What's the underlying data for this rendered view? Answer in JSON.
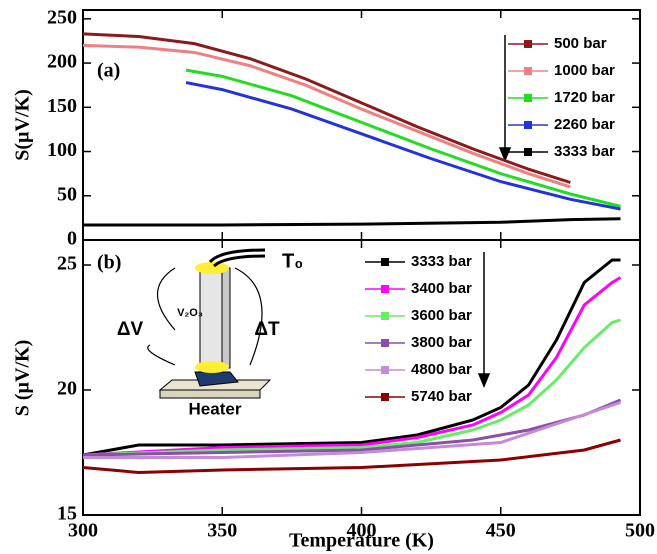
{
  "chart_data": [
    {
      "type": "line",
      "panel_label": "(a)",
      "y_label": "S(µV/K)",
      "xlim": [
        300,
        500
      ],
      "xticks": [
        300,
        350,
        400,
        450,
        500
      ],
      "ylim": [
        0,
        260
      ],
      "yticks": [
        0,
        50,
        100,
        150,
        200,
        250
      ],
      "series": [
        {
          "name": "500 bar",
          "color": "#8b1a1a",
          "x": [
            300,
            320,
            340,
            360,
            380,
            400,
            420,
            440,
            460,
            475
          ],
          "values": [
            233,
            230,
            222,
            205,
            182,
            155,
            128,
            103,
            80,
            65
          ]
        },
        {
          "name": "1000 bar",
          "color": "#f08080",
          "x": [
            300,
            320,
            340,
            360,
            380,
            400,
            420,
            440,
            460,
            475
          ],
          "values": [
            220,
            218,
            212,
            197,
            175,
            148,
            123,
            98,
            75,
            60
          ]
        },
        {
          "name": "1720 bar",
          "color": "#22dd22",
          "x": [
            337,
            350,
            375,
            400,
            425,
            450,
            475,
            493
          ],
          "values": [
            192,
            185,
            163,
            133,
            103,
            75,
            52,
            38
          ]
        },
        {
          "name": "2260 bar",
          "color": "#2233dd",
          "x": [
            337,
            350,
            375,
            400,
            425,
            450,
            475,
            493
          ],
          "values": [
            178,
            170,
            148,
            120,
            92,
            66,
            46,
            35
          ]
        },
        {
          "name": "3333 bar",
          "color": "#000000",
          "x": [
            300,
            350,
            400,
            450,
            475,
            493
          ],
          "values": [
            17,
            17,
            18,
            20,
            23,
            24
          ]
        }
      ]
    },
    {
      "type": "line",
      "panel_label": "(b)",
      "y_label": "S (µV/K)",
      "x_label": "Temperature (K)",
      "xlim": [
        300,
        500
      ],
      "xticks": [
        300,
        350,
        400,
        450,
        500
      ],
      "ylim": [
        15,
        26
      ],
      "yticks": [
        15,
        20,
        25
      ],
      "annotations": [
        "T₀",
        "ΔV",
        "V₂O₃",
        "ΔT",
        "Heater"
      ],
      "series": [
        {
          "name": "3333 bar",
          "color": "#000000",
          "x": [
            300,
            320,
            350,
            400,
            420,
            440,
            450,
            460,
            470,
            480,
            490,
            493
          ],
          "values": [
            17.4,
            17.8,
            17.8,
            17.9,
            18.2,
            18.8,
            19.3,
            20.2,
            22.0,
            24.3,
            25.2,
            25.2
          ]
        },
        {
          "name": "3400 bar",
          "color": "#ff00ff",
          "x": [
            300,
            350,
            400,
            420,
            440,
            450,
            460,
            470,
            480,
            490,
            493
          ],
          "values": [
            17.4,
            17.7,
            17.8,
            18.1,
            18.6,
            19.1,
            19.8,
            21.3,
            23.4,
            24.3,
            24.5
          ]
        },
        {
          "name": "3600 bar",
          "color": "#66ee66",
          "x": [
            300,
            350,
            400,
            420,
            440,
            450,
            460,
            470,
            480,
            490,
            493
          ],
          "values": [
            17.4,
            17.6,
            17.7,
            17.9,
            18.4,
            18.8,
            19.4,
            20.4,
            21.7,
            22.7,
            22.8
          ]
        },
        {
          "name": "3800 bar",
          "color": "#8a4fa8",
          "x": [
            300,
            350,
            400,
            440,
            460,
            480,
            493
          ],
          "values": [
            17.4,
            17.5,
            17.6,
            18.0,
            18.4,
            19.0,
            19.6
          ]
        },
        {
          "name": "4800 bar",
          "color": "#c58ad8",
          "x": [
            300,
            350,
            400,
            450,
            493
          ],
          "values": [
            17.3,
            17.3,
            17.5,
            17.9,
            19.5
          ]
        },
        {
          "name": "5740 bar",
          "color": "#8b0000",
          "x": [
            300,
            320,
            350,
            400,
            450,
            480,
            493
          ],
          "values": [
            16.9,
            16.7,
            16.8,
            16.9,
            17.2,
            17.6,
            18.0
          ]
        }
      ]
    }
  ]
}
